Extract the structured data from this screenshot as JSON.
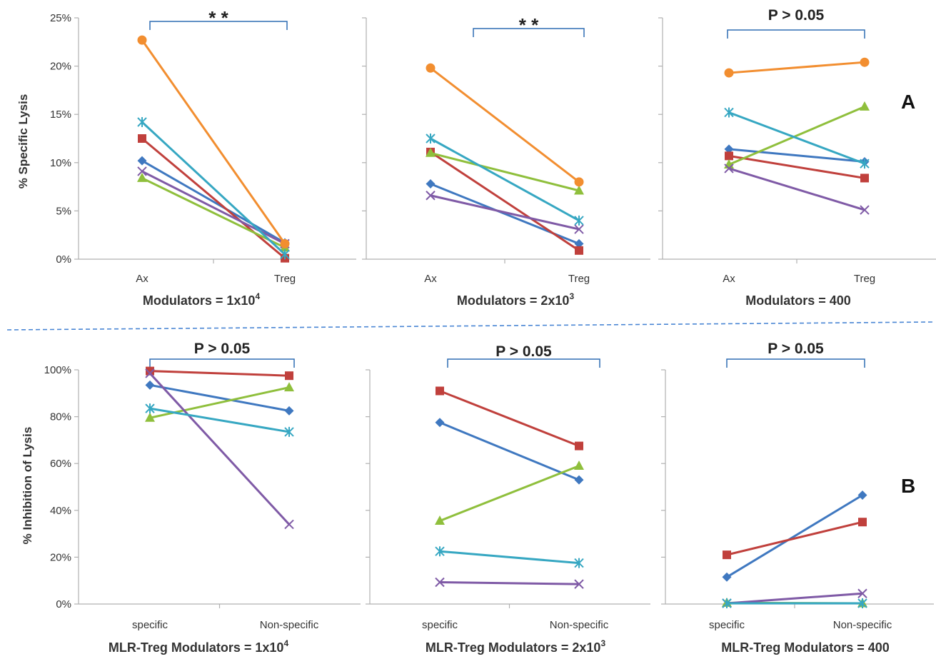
{
  "panel_labels": {
    "top": "A",
    "bottom": "B"
  },
  "y_titles": {
    "top": "% Specific Lysis",
    "bottom": "% Inhibition of Lysis"
  },
  "colors": {
    "diamond": "#3f78c0",
    "square": "#c0403c",
    "triangle": "#8fbf3c",
    "cross": "#7f5aa6",
    "star": "#36a7c2",
    "circle": "#f28e30",
    "axis": "#b0b0b0",
    "bracket": "#2e6db4",
    "separator": "#4a86d4"
  },
  "chart_data": [
    {
      "type": "line",
      "categories": [
        "Ax",
        "Treg"
      ],
      "title": "",
      "xlabel": "Modulators = 1x10",
      "xlabel_sup": "4",
      "ylabel": "% Specific Lysis",
      "ylim": [
        0,
        25
      ],
      "yticks": [
        0,
        5,
        10,
        15,
        20,
        25
      ],
      "ytick_labels": [
        "0%",
        "5%",
        "10%",
        "15%",
        "20%",
        "25%"
      ],
      "annotation": "* *",
      "series": [
        {
          "marker": "diamond",
          "values": [
            10.2,
            1.7
          ]
        },
        {
          "marker": "square",
          "values": [
            12.5,
            0.1
          ]
        },
        {
          "marker": "triangle",
          "values": [
            8.4,
            1.2
          ]
        },
        {
          "marker": "cross",
          "values": [
            9.1,
            1.6
          ]
        },
        {
          "marker": "star",
          "values": [
            14.2,
            0.5
          ]
        },
        {
          "marker": "circle",
          "values": [
            22.7,
            1.6
          ]
        }
      ]
    },
    {
      "type": "line",
      "categories": [
        "Ax",
        "Treg"
      ],
      "title": "",
      "xlabel": "Modulators = 2x10",
      "xlabel_sup": "3",
      "ylabel": "",
      "ylim": [
        0,
        25
      ],
      "yticks": [
        0,
        5,
        10,
        15,
        20,
        25
      ],
      "ytick_labels": [],
      "annotation": "* *",
      "series": [
        {
          "marker": "diamond",
          "values": [
            7.8,
            1.6
          ]
        },
        {
          "marker": "square",
          "values": [
            11.1,
            0.9
          ]
        },
        {
          "marker": "triangle",
          "values": [
            11.0,
            7.1
          ]
        },
        {
          "marker": "cross",
          "values": [
            6.6,
            3.1
          ]
        },
        {
          "marker": "star",
          "values": [
            12.5,
            4.0
          ]
        },
        {
          "marker": "circle",
          "values": [
            19.8,
            8.0
          ]
        }
      ]
    },
    {
      "type": "line",
      "categories": [
        "Ax",
        "Treg"
      ],
      "title": "",
      "xlabel": "Modulators = 400",
      "xlabel_sup": "",
      "ylabel": "",
      "ylim": [
        0,
        25
      ],
      "yticks": [
        0,
        5,
        10,
        15,
        20,
        25
      ],
      "ytick_labels": [],
      "annotation": "P > 0.05",
      "series": [
        {
          "marker": "diamond",
          "values": [
            11.4,
            10.1
          ]
        },
        {
          "marker": "square",
          "values": [
            10.7,
            8.4
          ]
        },
        {
          "marker": "triangle",
          "values": [
            9.8,
            15.8
          ]
        },
        {
          "marker": "cross",
          "values": [
            9.4,
            5.1
          ]
        },
        {
          "marker": "star",
          "values": [
            15.2,
            9.9
          ]
        },
        {
          "marker": "circle",
          "values": [
            19.3,
            20.4
          ]
        }
      ]
    },
    {
      "type": "line",
      "categories": [
        "specific",
        "Non-specific"
      ],
      "title": "",
      "xlabel": "MLR-Treg Modulators  = 1x10",
      "xlabel_sup": "4",
      "ylabel": "% Inhibition of Lysis",
      "ylim": [
        0,
        100
      ],
      "yticks": [
        0,
        20,
        40,
        60,
        80,
        100
      ],
      "ytick_labels": [
        "0%",
        "20%",
        "40%",
        "60%",
        "80%",
        "100%"
      ],
      "annotation": "P > 0.05",
      "series": [
        {
          "marker": "diamond",
          "values": [
            93.5,
            82.5
          ]
        },
        {
          "marker": "square",
          "values": [
            99.5,
            97.5
          ]
        },
        {
          "marker": "triangle",
          "values": [
            79.5,
            92.5
          ]
        },
        {
          "marker": "cross",
          "values": [
            98.5,
            34.0
          ]
        },
        {
          "marker": "star",
          "values": [
            83.5,
            73.5
          ]
        }
      ]
    },
    {
      "type": "line",
      "categories": [
        "specific",
        "Non-specific"
      ],
      "title": "",
      "xlabel": "MLR-Treg Modulators  = 2x10",
      "xlabel_sup": "3",
      "ylabel": "",
      "ylim": [
        0,
        100
      ],
      "yticks": [
        0,
        20,
        40,
        60,
        80,
        100
      ],
      "ytick_labels": [],
      "annotation": "P > 0.05",
      "series": [
        {
          "marker": "diamond",
          "values": [
            77.5,
            53.0
          ]
        },
        {
          "marker": "square",
          "values": [
            91.0,
            67.5
          ]
        },
        {
          "marker": "triangle",
          "values": [
            35.5,
            59.0
          ]
        },
        {
          "marker": "cross",
          "values": [
            9.3,
            8.5
          ]
        },
        {
          "marker": "star",
          "values": [
            22.5,
            17.5
          ]
        }
      ]
    },
    {
      "type": "line",
      "categories": [
        "specific",
        "Non-specific"
      ],
      "title": "",
      "xlabel": "MLR-Treg Modulators  = 400",
      "xlabel_sup": "",
      "ylabel": "",
      "ylim": [
        0,
        100
      ],
      "yticks": [
        0,
        20,
        40,
        60,
        80,
        100
      ],
      "ytick_labels": [],
      "annotation": "P > 0.05",
      "series": [
        {
          "marker": "diamond",
          "values": [
            11.5,
            46.5
          ]
        },
        {
          "marker": "square",
          "values": [
            21.0,
            35.0
          ]
        },
        {
          "marker": "triangle",
          "values": [
            0.5,
            0.3
          ]
        },
        {
          "marker": "cross",
          "values": [
            0.3,
            4.5
          ]
        },
        {
          "marker": "star",
          "values": [
            0.3,
            0.3
          ]
        }
      ]
    }
  ]
}
